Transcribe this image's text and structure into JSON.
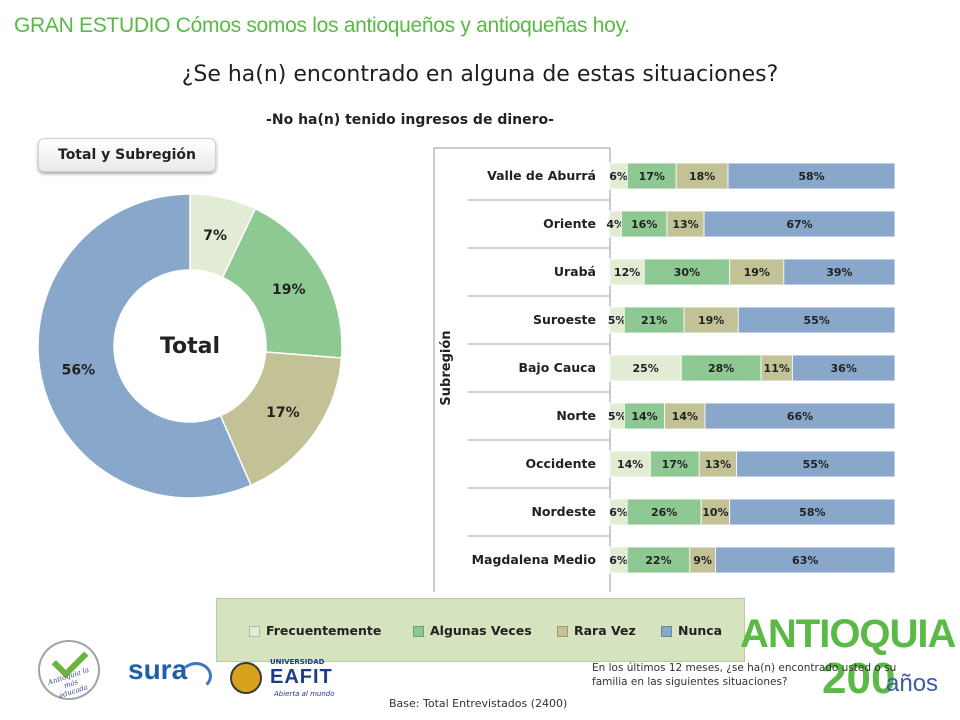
{
  "header": {
    "title": "GRAN ESTUDIO Cómos somos los antioqueños y antioqueñas hoy."
  },
  "title": "¿Se ha(n) encontrado en alguna de estas situaciones?",
  "subtitle": "-No ha(n) tenido ingresos de dinero-",
  "tag": "Total y Subregión",
  "colors": {
    "frecuentemente": "#e2ebd3",
    "algunas_veces": "#8ec993",
    "rara_vez": "#c3c296",
    "nunca": "#88a7cb"
  },
  "chart_data": [
    {
      "type": "pie",
      "variant": "donut",
      "center_label": "Total",
      "categories": [
        "Frecuentemente",
        "Algunas Veces",
        "Rara Vez",
        "Nunca"
      ],
      "values": [
        7,
        19,
        17,
        56
      ],
      "labels": [
        "7%",
        "19%",
        "17%",
        "56%"
      ]
    },
    {
      "type": "bar",
      "orientation": "horizontal",
      "stacked": true,
      "ylabel": "Subregión",
      "categories": [
        "Valle de  Aburrá",
        "Oriente",
        "Urabá",
        "Suroeste",
        "Bajo Cauca",
        "Norte",
        "Occidente",
        "Nordeste",
        "Magdalena  Medio"
      ],
      "series": [
        {
          "name": "Frecuentemente",
          "values": [
            6,
            4,
            12,
            5,
            25,
            5,
            14,
            6,
            6
          ]
        },
        {
          "name": "Algunas Veces",
          "values": [
            17,
            16,
            30,
            21,
            28,
            14,
            17,
            26,
            22
          ]
        },
        {
          "name": "Rara Vez",
          "values": [
            18,
            13,
            19,
            19,
            11,
            14,
            13,
            10,
            9
          ]
        },
        {
          "name": "Nunca",
          "values": [
            58,
            67,
            39,
            55,
            36,
            66,
            55,
            58,
            63
          ]
        }
      ],
      "legend": [
        "Frecuentemente",
        "Algunas Veces",
        "Rara Vez",
        "Nunca"
      ],
      "legend_position": "bottom"
    }
  ],
  "logos": {
    "check_text": "Antioquia la más educada",
    "sura": "sura",
    "eafit_top": "UNIVERSIDAD",
    "eafit": "EAFIT",
    "eafit_bottom": "Abierta al mundo",
    "antioquia_word": "ANTIOQUIA",
    "antioquia_200": "200",
    "antioquia_anos": "años"
  },
  "note": "En los últimos 12 meses, ¿se ha(n) encontrado usted o su familia en las siguientes situaciones?",
  "base": "Base: Total Entrevistados  (2400)"
}
